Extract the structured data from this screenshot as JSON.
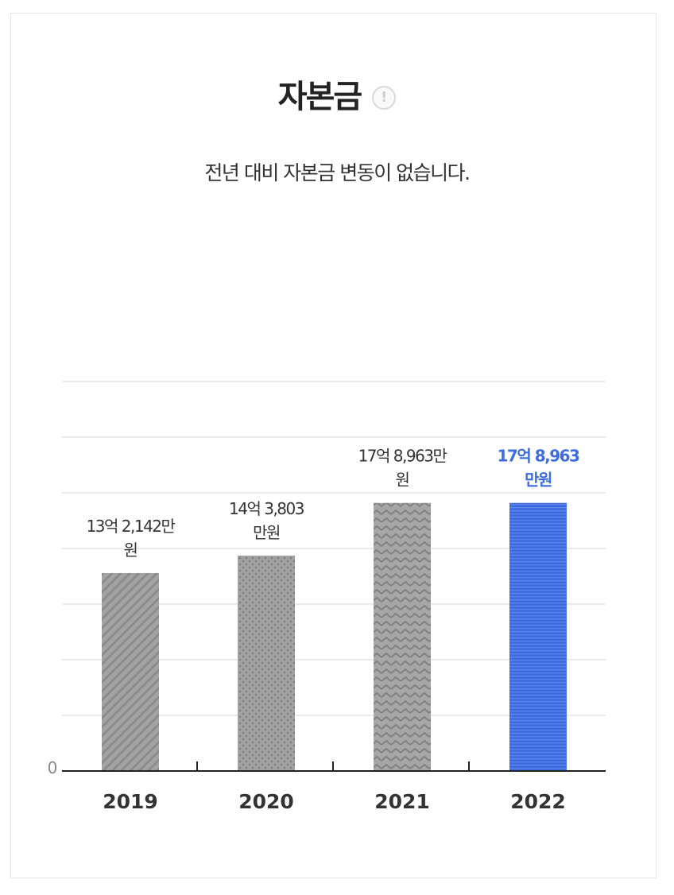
{
  "header": {
    "title": "자본금",
    "info_icon": "info-circle-icon",
    "subtitle": "전년 대비 자본금 변동이 없습니다."
  },
  "chart_data": {
    "type": "bar",
    "categories": [
      "2019",
      "2020",
      "2021",
      "2022"
    ],
    "values": [
      1321420000,
      1438030000,
      1789630000,
      1789630000
    ],
    "value_labels": [
      [
        "13억 2,142만",
        "원"
      ],
      [
        "14억 3,803",
        "만원"
      ],
      [
        "17억 8,963만",
        "원"
      ],
      [
        "17억 8,963",
        "만원"
      ]
    ],
    "zero_label": "0",
    "ylim": [
      0,
      2600000000
    ],
    "grid": true,
    "highlight_index": 3,
    "bar_patterns": [
      "diagonal-stripes",
      "dots",
      "zigzag",
      "horizontal-stripes"
    ],
    "colors": {
      "bar": "#9e9e9e",
      "highlight_bar": "#3d6ce0",
      "highlight_text": "#3d6ce0",
      "grid": "#e4e4e4",
      "axis": "#222222"
    }
  }
}
